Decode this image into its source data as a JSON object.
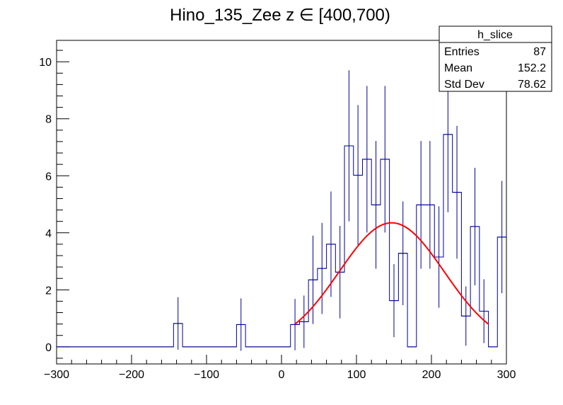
{
  "chart_data": {
    "type": "histogram",
    "title": "Hino_135_Zee z  ∈ [400,700)",
    "xlabel": "",
    "ylabel": "",
    "xlim": [
      -300,
      300
    ],
    "ylim": [
      -0.6,
      10.75
    ],
    "x_ticks": [
      -300,
      -200,
      -100,
      0,
      100,
      200,
      300
    ],
    "x_tick_labels": [
      "−300",
      "−200",
      "−100",
      "0",
      "100",
      "200",
      "300"
    ],
    "y_ticks": [
      0,
      2,
      4,
      6,
      8,
      10
    ],
    "y_tick_labels": [
      "0",
      "2",
      "4",
      "6",
      "8",
      "10"
    ],
    "bin_width": 12,
    "bins": [
      {
        "x": -300,
        "y": 0,
        "err": 0
      },
      {
        "x": -288,
        "y": 0,
        "err": 0
      },
      {
        "x": -276,
        "y": 0,
        "err": 0
      },
      {
        "x": -264,
        "y": 0,
        "err": 0
      },
      {
        "x": -252,
        "y": 0,
        "err": 0
      },
      {
        "x": -240,
        "y": 0,
        "err": 0
      },
      {
        "x": -228,
        "y": 0,
        "err": 0
      },
      {
        "x": -216,
        "y": 0,
        "err": 0
      },
      {
        "x": -204,
        "y": 0,
        "err": 0
      },
      {
        "x": -192,
        "y": 0,
        "err": 0
      },
      {
        "x": -180,
        "y": 0,
        "err": 0
      },
      {
        "x": -168,
        "y": 0,
        "err": 0
      },
      {
        "x": -156,
        "y": 0,
        "err": 0
      },
      {
        "x": -144,
        "y": 0.82,
        "err": 0.92
      },
      {
        "x": -132,
        "y": 0,
        "err": 0
      },
      {
        "x": -120,
        "y": 0,
        "err": 0
      },
      {
        "x": -108,
        "y": 0,
        "err": 0
      },
      {
        "x": -96,
        "y": 0,
        "err": 0
      },
      {
        "x": -84,
        "y": 0,
        "err": 0
      },
      {
        "x": -72,
        "y": 0,
        "err": 0
      },
      {
        "x": -60,
        "y": 0.78,
        "err": 0.92
      },
      {
        "x": -48,
        "y": 0,
        "err": 0
      },
      {
        "x": -36,
        "y": 0,
        "err": 0
      },
      {
        "x": -24,
        "y": 0,
        "err": 0
      },
      {
        "x": -12,
        "y": 0,
        "err": 0
      },
      {
        "x": 0,
        "y": 0,
        "err": 0
      },
      {
        "x": 12,
        "y": 0.78,
        "err": 0.9
      },
      {
        "x": 24,
        "y": 0.88,
        "err": 0.92
      },
      {
        "x": 36,
        "y": 2.35,
        "err": 1.55
      },
      {
        "x": 48,
        "y": 2.75,
        "err": 1.6
      },
      {
        "x": 60,
        "y": 3.6,
        "err": 1.85
      },
      {
        "x": 72,
        "y": 2.62,
        "err": 1.62
      },
      {
        "x": 84,
        "y": 7.05,
        "err": 2.65
      },
      {
        "x": 96,
        "y": 6.02,
        "err": 2.46
      },
      {
        "x": 108,
        "y": 6.58,
        "err": 2.57
      },
      {
        "x": 120,
        "y": 4.98,
        "err": 2.24
      },
      {
        "x": 132,
        "y": 6.58,
        "err": 2.57
      },
      {
        "x": 144,
        "y": 1.62,
        "err": 1.28
      },
      {
        "x": 156,
        "y": 3.28,
        "err": 1.82
      },
      {
        "x": 168,
        "y": 0,
        "err": 0
      },
      {
        "x": 180,
        "y": 4.98,
        "err": 2.24
      },
      {
        "x": 192,
        "y": 4.98,
        "err": 2.24
      },
      {
        "x": 204,
        "y": 3.15,
        "err": 1.78
      },
      {
        "x": 216,
        "y": 7.45,
        "err": 2.73
      },
      {
        "x": 228,
        "y": 5.42,
        "err": 2.33
      },
      {
        "x": 240,
        "y": 1.08,
        "err": 1.04
      },
      {
        "x": 252,
        "y": 4.22,
        "err": 2.06
      },
      {
        "x": 264,
        "y": 1.25,
        "err": 1.12
      },
      {
        "x": 276,
        "y": 0,
        "err": 0
      },
      {
        "x": 288,
        "y": 3.85,
        "err": 1.97
      }
    ],
    "fit": {
      "type": "gaussian",
      "constant": 4.35,
      "mean": 147,
      "sigma": 70,
      "range": [
        18,
        276
      ],
      "color": "#ff0000"
    },
    "histogram_color": "#000099",
    "grid": false
  },
  "stats_box": {
    "name": "h_slice",
    "rows": [
      {
        "label": "Entries",
        "value": "87"
      },
      {
        "label": "Mean",
        "value": "152.2"
      },
      {
        "label": "Std Dev",
        "value": "78.62"
      }
    ]
  }
}
